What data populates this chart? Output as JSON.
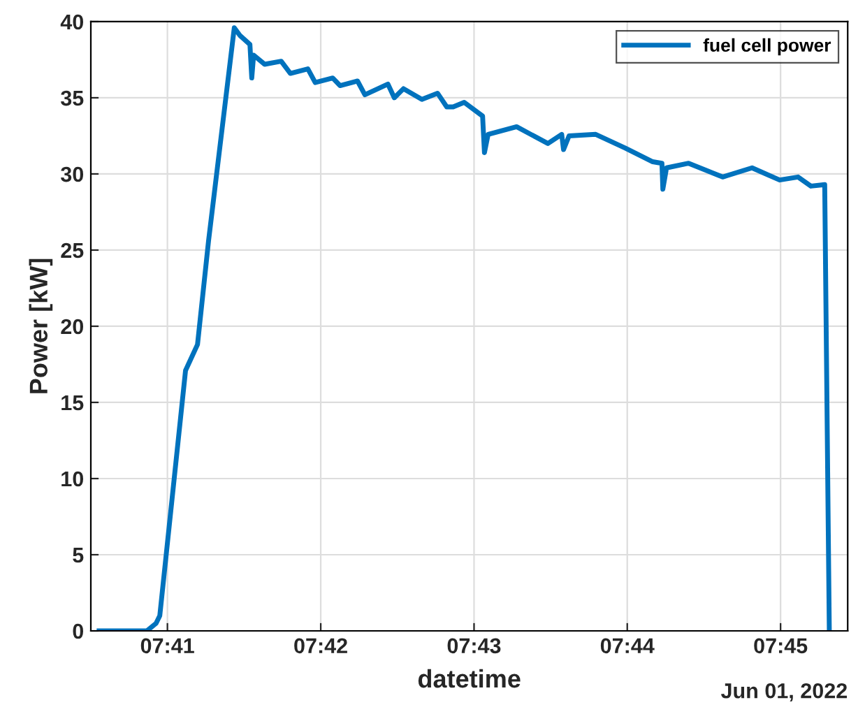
{
  "chart_data": {
    "type": "line",
    "xlabel": "datetime",
    "ylabel": "Power [kW]",
    "annotations": [
      "Jun 01, 2022"
    ],
    "series": [
      {
        "name": "fuel cell power",
        "color": "#0072bd",
        "x": [
          7.6759,
          7.6811,
          7.6821,
          7.6825,
          7.6853,
          7.6866,
          7.6878,
          7.6893,
          7.6906,
          7.6912,
          7.6923,
          7.6925,
          7.6927,
          7.6939,
          7.6957,
          7.6967,
          7.6986,
          7.6994,
          7.7013,
          7.7021,
          7.704,
          7.7048,
          7.7073,
          7.708,
          7.709,
          7.711,
          7.7127,
          7.7137,
          7.7144,
          7.7156,
          7.7176,
          7.7178,
          7.7182,
          7.7213,
          7.7247,
          7.7262,
          7.7264,
          7.727,
          7.7299,
          7.7331,
          7.7361,
          7.7371,
          7.7372,
          7.7376,
          7.74,
          7.7437,
          7.7469,
          7.7499,
          7.7519,
          7.7533,
          7.7548,
          7.7553
        ],
        "values": [
          0,
          0,
          0.5,
          1.0,
          17.1,
          18.8,
          25.6,
          33.1,
          39.6,
          39.1,
          38.5,
          36.3,
          37.8,
          37.2,
          37.4,
          36.6,
          36.9,
          36.0,
          36.3,
          35.8,
          36.1,
          35.2,
          35.9,
          35.0,
          35.6,
          34.9,
          35.3,
          34.4,
          34.4,
          34.7,
          33.8,
          31.4,
          32.6,
          33.1,
          32.0,
          32.6,
          31.6,
          32.5,
          32.6,
          31.7,
          30.8,
          30.7,
          29.0,
          30.4,
          30.7,
          29.8,
          30.4,
          29.6,
          29.8,
          29.2,
          29.3,
          0
        ]
      }
    ],
    "xlim": [
      7.675,
      7.7573
    ],
    "xticks": [
      {
        "value": 7.68333,
        "label": "07:41"
      },
      {
        "value": 7.7,
        "label": "07:42"
      },
      {
        "value": 7.71667,
        "label": "07:43"
      },
      {
        "value": 7.73333,
        "label": "07:44"
      },
      {
        "value": 7.75,
        "label": "07:45"
      }
    ],
    "ylim": [
      0,
      40
    ],
    "yticks": [
      0,
      5,
      10,
      15,
      20,
      25,
      30,
      35,
      40
    ],
    "grid": true,
    "legend": "top right",
    "line_style": "solid",
    "marker": "none"
  }
}
